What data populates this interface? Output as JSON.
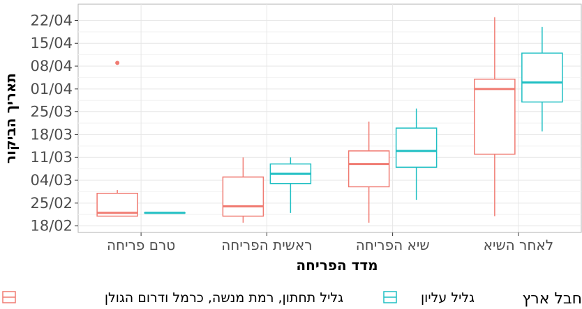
{
  "chart_data": {
    "type": "box",
    "xlabel": "מדד הפריחה",
    "ylabel": "תאריך הביקור",
    "categories": [
      "טרם פריחה",
      "ראשית הפריחה",
      "שיא הפריחה",
      "לאחר השיא"
    ],
    "y_ticks": [
      "18/02",
      "25/02",
      "04/03",
      "11/03",
      "18/03",
      "25/03",
      "01/04",
      "08/04",
      "15/04",
      "22/04"
    ],
    "ylim": [
      "2023-02-16",
      "2023-04-27"
    ],
    "grid": true,
    "legend": {
      "title": "חבל ארץ",
      "position": "bottom",
      "items": [
        {
          "name": "גליל עליון",
          "color": "#1fbfc3"
        },
        {
          "name": "גליל תחתון, רמת מנשה, כרמל ודרום הגולן",
          "color": "#f07b72"
        }
      ]
    },
    "series": [
      {
        "name": "גליל תחתון, רמת מנשה, כרמל ודרום הגולן",
        "color": "#f07b72",
        "boxes": [
          {
            "category": "טרם פריחה",
            "min": "2023-02-21",
            "q1": "2023-02-21",
            "median": "2023-02-22",
            "q3": "2023-02-28",
            "max": "2023-03-01",
            "outliers": [
              "2023-04-09"
            ]
          },
          {
            "category": "ראשית הפריחה",
            "min": "2023-02-19",
            "q1": "2023-02-21",
            "median": "2023-02-24",
            "q3": "2023-03-05",
            "max": "2023-03-11",
            "outliers": []
          },
          {
            "category": "שיא הפריחה",
            "min": "2023-02-19",
            "q1": "2023-03-02",
            "median": "2023-03-09",
            "q3": "2023-03-13",
            "max": "2023-03-22",
            "outliers": []
          },
          {
            "category": "לאחר השיא",
            "min": "2023-02-21",
            "q1": "2023-03-12",
            "median": "2023-04-01",
            "q3": "2023-04-04",
            "max": "2023-04-23",
            "outliers": []
          }
        ]
      },
      {
        "name": "גליל עליון",
        "color": "#1fbfc3",
        "boxes": [
          {
            "category": "טרם פריחה",
            "min": "2023-02-22",
            "q1": "2023-02-22",
            "median": "2023-02-22",
            "q3": "2023-02-22",
            "max": "2023-02-22",
            "outliers": []
          },
          {
            "category": "ראשית הפריחה",
            "min": "2023-02-22",
            "q1": "2023-03-03",
            "median": "2023-03-06",
            "q3": "2023-03-09",
            "max": "2023-03-11",
            "outliers": []
          },
          {
            "category": "שיא הפריחה",
            "min": "2023-02-26",
            "q1": "2023-03-08",
            "median": "2023-03-13",
            "q3": "2023-03-20",
            "max": "2023-03-26",
            "outliers": []
          },
          {
            "category": "לאחר השיא",
            "min": "2023-03-19",
            "q1": "2023-03-28",
            "median": "2023-04-03",
            "q3": "2023-04-12",
            "max": "2023-04-20",
            "outliers": []
          }
        ]
      }
    ]
  }
}
